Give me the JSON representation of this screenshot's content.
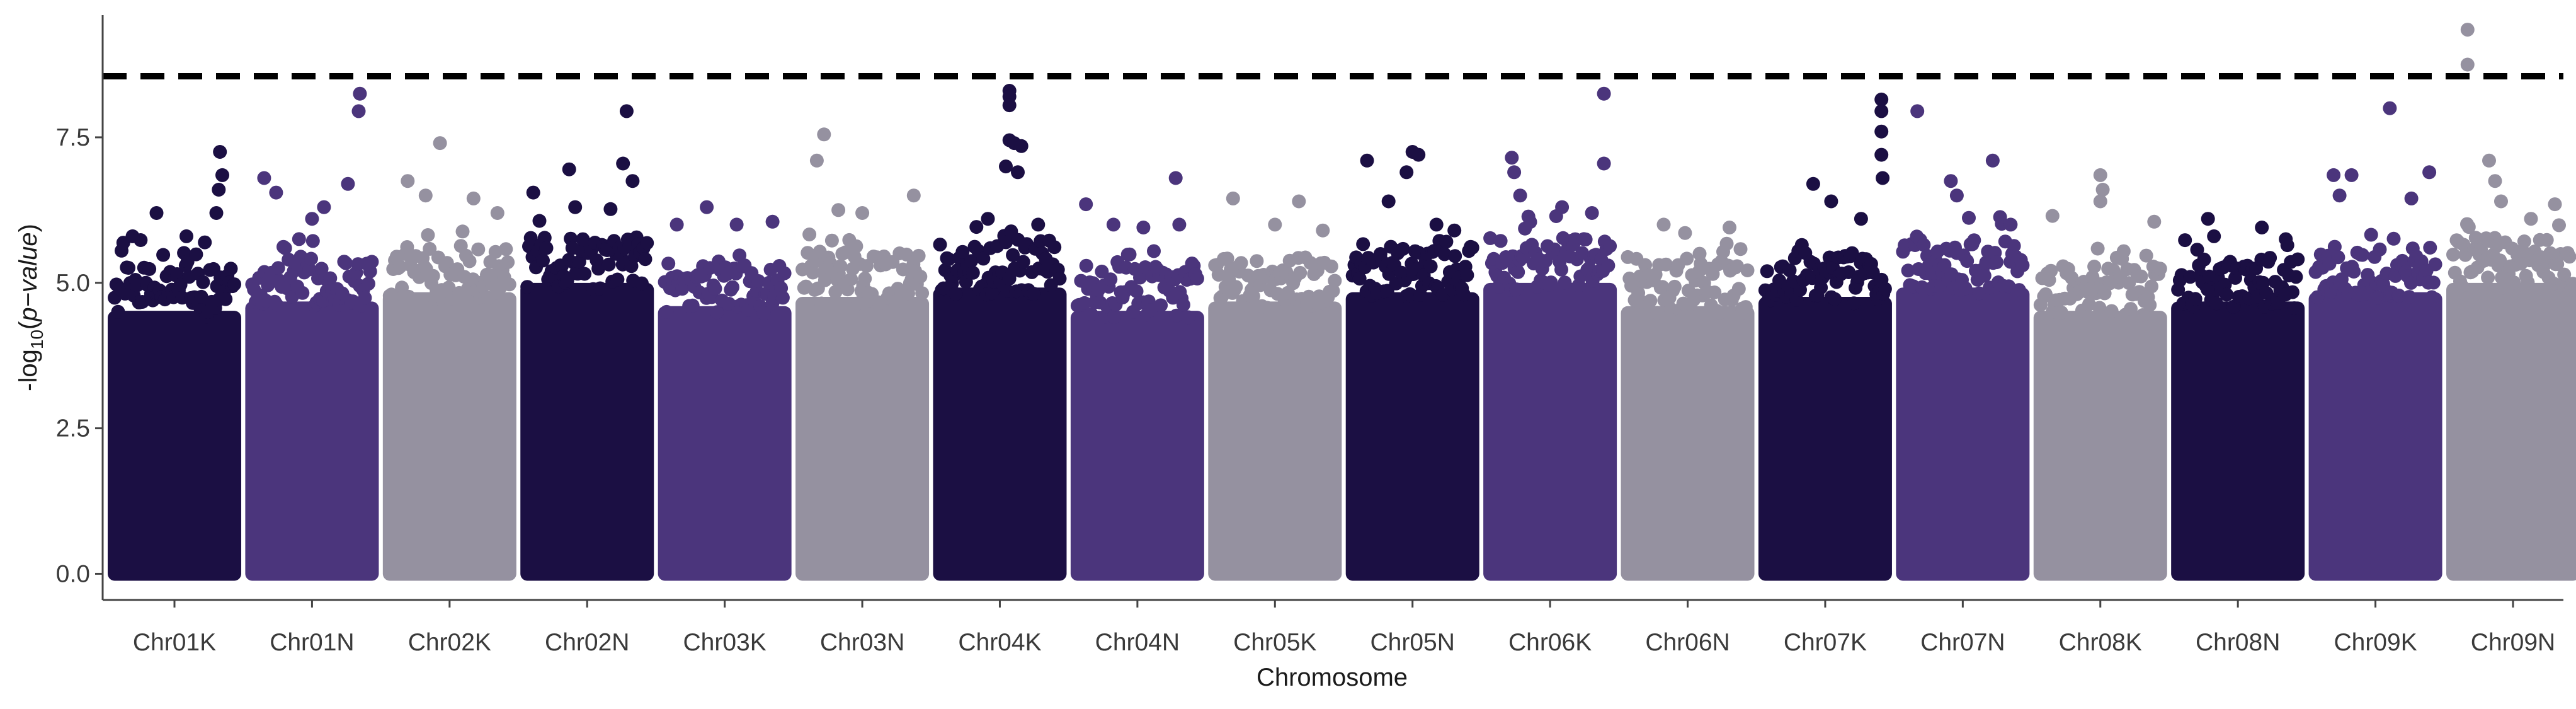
{
  "chart_data": {
    "type": "scatter",
    "title": "",
    "xlabel": "Chromosome",
    "ylabel": "-log10(p-value)",
    "ylabel_parts": {
      "prefix": "-log",
      "subscript": "10",
      "open": "(",
      "italic": "p−value",
      "close": ")"
    },
    "ylim": [
      -0.45,
      9.6
    ],
    "y_ticks": [
      0.0,
      2.5,
      5.0,
      7.5
    ],
    "y_tick_labels": [
      "0.0",
      "2.5",
      "5.0",
      "7.5"
    ],
    "threshold": 8.55,
    "threshold_style": "dashed",
    "grid": false,
    "legend": "none",
    "palette": [
      "#1b0f43",
      "#4b357c",
      "#9591a0"
    ],
    "categories": [
      "Chr01K",
      "Chr01N",
      "Chr02K",
      "Chr02N",
      "Chr03K",
      "Chr03N",
      "Chr04K",
      "Chr04N",
      "Chr05K",
      "Chr05N",
      "Chr06K",
      "Chr06N",
      "Chr07K",
      "Chr07N",
      "Chr08K",
      "Chr08N",
      "Chr09K",
      "Chr09N"
    ],
    "series": [
      {
        "name": "Chr01K",
        "max_y": 7.25,
        "top_points": [
          [
            0.88,
            7.25
          ],
          [
            0.9,
            6.85
          ],
          [
            0.87,
            6.6
          ],
          [
            0.85,
            6.2
          ],
          [
            0.35,
            6.2
          ],
          [
            0.15,
            5.8
          ],
          [
            0.6,
            5.8
          ]
        ]
      },
      {
        "name": "Chr01N",
        "max_y": 8.25,
        "top_points": [
          [
            0.9,
            8.25
          ],
          [
            0.89,
            7.95
          ],
          [
            0.1,
            6.8
          ],
          [
            0.8,
            6.7
          ],
          [
            0.2,
            6.55
          ],
          [
            0.6,
            6.3
          ],
          [
            0.5,
            6.1
          ]
        ]
      },
      {
        "name": "Chr02K",
        "max_y": 7.4,
        "top_points": [
          [
            0.42,
            7.4
          ],
          [
            0.15,
            6.75
          ],
          [
            0.3,
            6.5
          ],
          [
            0.7,
            6.45
          ],
          [
            0.9,
            6.2
          ]
        ]
      },
      {
        "name": "Chr02N",
        "max_y": 7.95,
        "top_points": [
          [
            0.83,
            7.95
          ],
          [
            0.8,
            7.05
          ],
          [
            0.35,
            6.95
          ],
          [
            0.05,
            6.55
          ],
          [
            0.88,
            6.75
          ],
          [
            0.4,
            6.3
          ]
        ]
      },
      {
        "name": "Chr03K",
        "max_y": 6.3,
        "top_points": [
          [
            0.35,
            6.3
          ],
          [
            0.1,
            6.0
          ],
          [
            0.6,
            6.0
          ],
          [
            0.9,
            6.05
          ]
        ]
      },
      {
        "name": "Chr03N",
        "max_y": 7.55,
        "top_points": [
          [
            0.18,
            7.55
          ],
          [
            0.12,
            7.1
          ],
          [
            0.3,
            6.25
          ],
          [
            0.5,
            6.2
          ],
          [
            0.93,
            6.5
          ]
        ]
      },
      {
        "name": "Chr04K",
        "max_y": 8.3,
        "top_points": [
          [
            0.58,
            8.3
          ],
          [
            0.58,
            8.2
          ],
          [
            0.58,
            8.05
          ],
          [
            0.58,
            7.45
          ],
          [
            0.62,
            7.4
          ],
          [
            0.68,
            7.35
          ],
          [
            0.55,
            7.0
          ],
          [
            0.65,
            6.9
          ],
          [
            0.4,
            6.1
          ],
          [
            0.82,
            6.0
          ]
        ]
      },
      {
        "name": "Chr04N",
        "max_y": 6.8,
        "top_points": [
          [
            0.82,
            6.8
          ],
          [
            0.07,
            6.35
          ],
          [
            0.3,
            6.0
          ],
          [
            0.55,
            5.95
          ],
          [
            0.85,
            6.0
          ]
        ]
      },
      {
        "name": "Chr05K",
        "max_y": 6.45,
        "top_points": [
          [
            0.15,
            6.45
          ],
          [
            0.7,
            6.4
          ],
          [
            0.5,
            6.0
          ],
          [
            0.9,
            5.9
          ]
        ]
      },
      {
        "name": "Chr05N",
        "max_y": 7.25,
        "top_points": [
          [
            0.12,
            7.1
          ],
          [
            0.5,
            7.25
          ],
          [
            0.55,
            7.2
          ],
          [
            0.45,
            6.9
          ],
          [
            0.3,
            6.4
          ],
          [
            0.7,
            6.0
          ],
          [
            0.85,
            5.9
          ]
        ]
      },
      {
        "name": "Chr06K",
        "max_y": 8.25,
        "top_points": [
          [
            0.95,
            8.25
          ],
          [
            0.95,
            7.05
          ],
          [
            0.18,
            7.15
          ],
          [
            0.2,
            6.9
          ],
          [
            0.25,
            6.5
          ],
          [
            0.6,
            6.3
          ],
          [
            0.85,
            6.2
          ]
        ]
      },
      {
        "name": "Chr06N",
        "max_y": 6.0,
        "top_points": [
          [
            0.3,
            6.0
          ],
          [
            0.85,
            5.95
          ],
          [
            0.6,
            5.5
          ]
        ]
      },
      {
        "name": "Chr07K",
        "max_y": 8.15,
        "top_points": [
          [
            0.97,
            8.15
          ],
          [
            0.97,
            7.95
          ],
          [
            0.97,
            7.6
          ],
          [
            0.97,
            7.2
          ],
          [
            0.98,
            6.8
          ],
          [
            0.4,
            6.7
          ],
          [
            0.55,
            6.4
          ],
          [
            0.8,
            6.1
          ]
        ]
      },
      {
        "name": "Chr07N",
        "max_y": 7.95,
        "top_points": [
          [
            0.12,
            7.95
          ],
          [
            0.75,
            7.1
          ],
          [
            0.4,
            6.75
          ],
          [
            0.45,
            6.5
          ],
          [
            0.9,
            6.0
          ]
        ]
      },
      {
        "name": "Chr08K",
        "max_y": 6.85,
        "top_points": [
          [
            0.5,
            6.85
          ],
          [
            0.52,
            6.6
          ],
          [
            0.5,
            6.4
          ],
          [
            0.1,
            6.15
          ],
          [
            0.95,
            6.05
          ]
        ]
      },
      {
        "name": "Chr08N",
        "max_y": 6.1,
        "top_points": [
          [
            0.25,
            6.1
          ],
          [
            0.3,
            5.8
          ],
          [
            0.7,
            5.95
          ],
          [
            0.9,
            5.75
          ]
        ]
      },
      {
        "name": "Chr09K",
        "max_y": 8.0,
        "top_points": [
          [
            0.62,
            8.0
          ],
          [
            0.95,
            6.9
          ],
          [
            0.15,
            6.85
          ],
          [
            0.3,
            6.85
          ],
          [
            0.2,
            6.5
          ],
          [
            0.8,
            6.45
          ]
        ]
      },
      {
        "name": "Chr09N",
        "max_y": 9.35,
        "top_points": [
          [
            0.12,
            9.35
          ],
          [
            0.12,
            8.75
          ],
          [
            0.3,
            7.1
          ],
          [
            0.35,
            6.75
          ],
          [
            0.4,
            6.4
          ],
          [
            0.85,
            6.35
          ],
          [
            0.65,
            6.1
          ]
        ]
      }
    ]
  }
}
